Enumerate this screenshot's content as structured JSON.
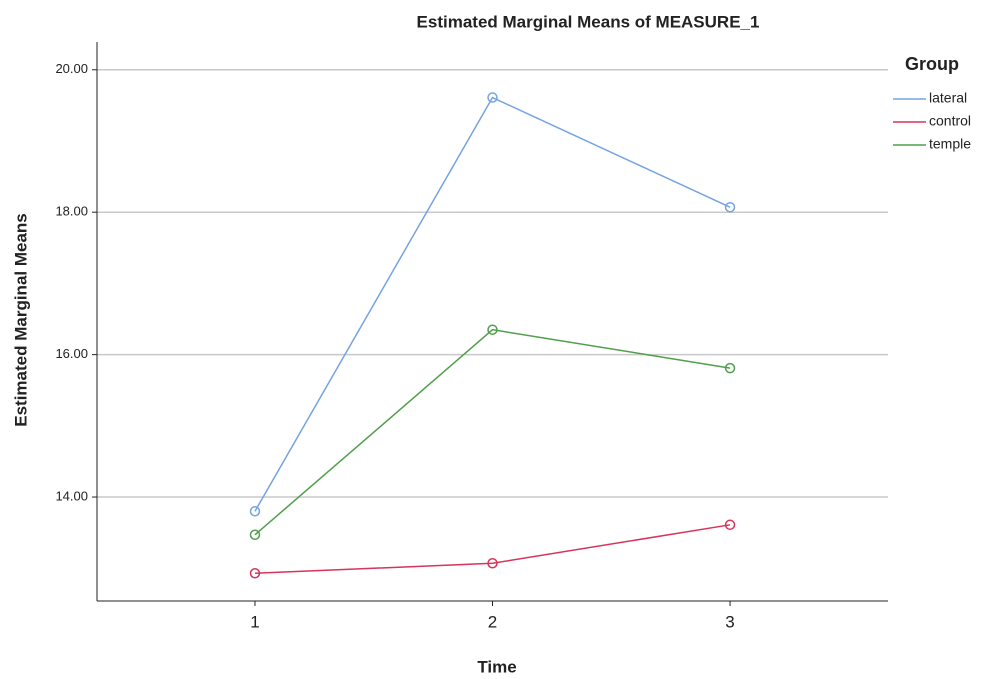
{
  "chart_data": {
    "type": "line",
    "title": "Estimated Marginal Means of MEASURE_1",
    "x_label": "Time",
    "y_label": "Estimated Marginal Means",
    "x": [
      1,
      2,
      3
    ],
    "xlim": [
      0.335,
      3.665
    ],
    "xticks": [
      1,
      2,
      3
    ],
    "ylim": [
      12.54,
      20.39
    ],
    "yticks": [
      {
        "value": 14,
        "label": "14.00"
      },
      {
        "value": 16,
        "label": "16.00"
      },
      {
        "value": 18,
        "label": "18.00"
      },
      {
        "value": 20,
        "label": "20.00"
      }
    ],
    "grid": true,
    "legend_title": "Group",
    "legend_position": "right",
    "series": [
      {
        "name": "lateral",
        "color": "#74a3e3",
        "values": [
          13.8,
          19.61,
          18.07
        ]
      },
      {
        "name": "control",
        "color": "#d6345a",
        "values": [
          12.93,
          13.07,
          13.61
        ]
      },
      {
        "name": "temple",
        "color": "#4f9f4b",
        "values": [
          13.47,
          16.35,
          15.81
        ]
      }
    ]
  }
}
